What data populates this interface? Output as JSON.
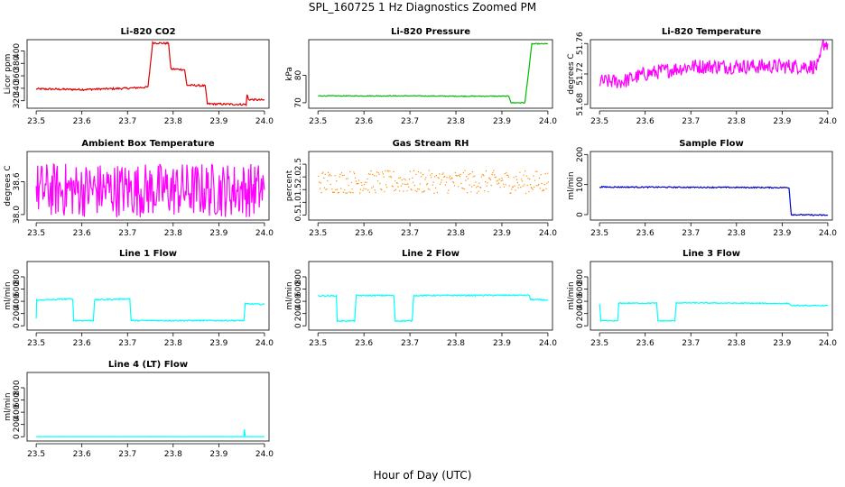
{
  "figure": {
    "title": "SPL_160725  1 Hz Diagnostics Zoomed PM",
    "xlabel": "Hour of Day (UTC)"
  },
  "chart_data": [
    {
      "type": "line",
      "title": "Li-820 CO2",
      "ylabel": "Licor ppm",
      "color": "#dd0000",
      "xlim": [
        23.48,
        24.01
      ],
      "ylim": [
        308,
        418
      ],
      "yticks": [
        "320",
        "340",
        "360",
        "380",
        "400"
      ],
      "ytick_values": [
        320,
        340,
        360,
        380,
        400
      ],
      "x": [
        23.5,
        23.6,
        23.7,
        23.745,
        23.755,
        23.79,
        23.795,
        23.825,
        23.83,
        23.87,
        23.875,
        23.96,
        23.962,
        23.965,
        24.0
      ],
      "y": [
        339,
        338,
        340,
        342,
        413,
        412,
        371,
        370,
        345,
        344,
        315,
        314,
        330,
        322,
        321
      ],
      "noise": 1.5
    },
    {
      "type": "line",
      "title": "Li-820 Pressure",
      "ylabel": "kPa",
      "color": "#00bb00",
      "xlim": [
        23.48,
        24.01
      ],
      "ylim": [
        68,
        93
      ],
      "yticks": [
        "70",
        "80"
      ],
      "ytick_values": [
        70,
        80
      ],
      "x": [
        23.5,
        23.6,
        23.7,
        23.8,
        23.9,
        23.915,
        23.92,
        23.95,
        23.96,
        23.965,
        24.0
      ],
      "y": [
        72.5,
        72.5,
        72.5,
        72.4,
        72.4,
        72.4,
        70.0,
        70.0,
        84,
        91.5,
        91.5
      ],
      "noise": 0.15
    },
    {
      "type": "line",
      "title": "Li-820 Temperature",
      "ylabel": "degrees C",
      "color": "#ff00ff",
      "xlim": [
        23.48,
        24.01
      ],
      "ylim": [
        51.675,
        51.765
      ],
      "yticks": [
        "51.68",
        "51.72",
        "51.76"
      ],
      "ytick_values": [
        51.68,
        51.72,
        51.76
      ],
      "x": [
        23.5,
        23.55,
        23.6,
        23.7,
        23.8,
        23.9,
        23.98,
        23.99,
        24.0
      ],
      "y": [
        51.71,
        51.71,
        51.72,
        51.73,
        51.73,
        51.73,
        51.73,
        51.76,
        51.76
      ],
      "noise": 0.01
    },
    {
      "type": "line",
      "title": "Ambient Box Temperature",
      "ylabel": "degrees C",
      "color": "#ff00ff",
      "xlim": [
        23.48,
        24.01
      ],
      "ylim": [
        37.9,
        39.15
      ],
      "yticks": [
        "38.0",
        "38.6"
      ],
      "ytick_values": [
        38.0,
        38.6
      ],
      "x": [
        23.5,
        24.0
      ],
      "y": [
        38.45,
        38.45
      ],
      "noise": 0.5
    },
    {
      "type": "scatter",
      "title": "Gas Stream RH",
      "ylabel": "percent",
      "color": "#ff8c00",
      "xlim": [
        23.48,
        24.01
      ],
      "ylim": [
        0.3,
        3.0
      ],
      "yticks": [
        "0.5",
        "1.0",
        "1.5",
        "2.0",
        "2.5"
      ],
      "ytick_values": [
        0.5,
        1.0,
        1.5,
        2.0,
        2.5
      ],
      "x": [
        23.5,
        24.0
      ],
      "y": [
        1.8,
        1.8
      ],
      "noise": 0.45
    },
    {
      "type": "line",
      "title": "Sample Flow",
      "ylabel": "ml/min",
      "color": "#0000cc",
      "xlim": [
        23.48,
        24.01
      ],
      "ylim": [
        -18,
        210
      ],
      "yticks": [
        "0",
        "100",
        "200"
      ],
      "ytick_values": [
        0,
        100,
        200
      ],
      "x": [
        23.5,
        23.7,
        23.9,
        23.915,
        23.92,
        24.0
      ],
      "y": [
        92,
        91,
        90,
        90,
        0,
        -2
      ],
      "noise": 2
    },
    {
      "type": "line",
      "title": "Line 1 Flow",
      "ylabel": "ml/min",
      "color": "#00ffff",
      "xlim": [
        23.48,
        24.01
      ],
      "ylim": [
        -70,
        1050
      ],
      "yticks": [
        "0",
        "200",
        "400",
        "600",
        "800"
      ],
      "ytick_values": [
        0,
        200,
        400,
        600,
        800
      ],
      "x": [
        23.5,
        23.501,
        23.58,
        23.582,
        23.625,
        23.628,
        23.705,
        23.708,
        23.955,
        23.958,
        24.0
      ],
      "y": [
        120,
        420,
        440,
        85,
        85,
        425,
        440,
        85,
        85,
        360,
        350
      ],
      "noise": 10
    },
    {
      "type": "line",
      "title": "Line 2 Flow",
      "ylabel": "ml/min",
      "color": "#00ffff",
      "xlim": [
        23.48,
        24.01
      ],
      "ylim": [
        -70,
        1050
      ],
      "yticks": [
        "0",
        "200",
        "400",
        "600",
        "800"
      ],
      "ytick_values": [
        0,
        200,
        400,
        600,
        800
      ],
      "x": [
        23.5,
        23.54,
        23.542,
        23.58,
        23.583,
        23.665,
        23.668,
        23.705,
        23.708,
        23.96,
        23.962,
        24.0
      ],
      "y": [
        490,
        490,
        80,
        80,
        495,
        495,
        80,
        80,
        495,
        500,
        430,
        420
      ],
      "noise": 10
    },
    {
      "type": "line",
      "title": "Line 3 Flow",
      "ylabel": "ml/min",
      "color": "#00ffff",
      "xlim": [
        23.48,
        24.01
      ],
      "ylim": [
        -70,
        1050
      ],
      "yticks": [
        "0",
        "200",
        "400",
        "600",
        "800"
      ],
      "ytick_values": [
        0,
        200,
        400,
        600,
        800
      ],
      "x": [
        23.5,
        23.503,
        23.54,
        23.542,
        23.625,
        23.628,
        23.665,
        23.668,
        23.915,
        23.92,
        24.0
      ],
      "y": [
        360,
        80,
        80,
        370,
        370,
        80,
        80,
        375,
        365,
        330,
        330
      ],
      "noise": 8
    },
    {
      "type": "line",
      "title": "Line 4 (LT) Flow",
      "ylabel": "ml/min",
      "color": "#00ffff",
      "xlim": [
        23.48,
        24.01
      ],
      "ylim": [
        -70,
        1050
      ],
      "yticks": [
        "0",
        "200",
        "400",
        "600",
        "800"
      ],
      "ytick_values": [
        0,
        200,
        400,
        600,
        800
      ],
      "x": [
        23.5,
        23.955,
        23.956,
        23.958,
        24.0
      ],
      "y": [
        2,
        2,
        120,
        2,
        2
      ],
      "noise": 1
    }
  ],
  "xaxis": {
    "ticks": [
      "23.5",
      "23.6",
      "23.7",
      "23.8",
      "23.9",
      "24.0"
    ],
    "tick_values": [
      23.5,
      23.6,
      23.7,
      23.8,
      23.9,
      24.0
    ]
  }
}
